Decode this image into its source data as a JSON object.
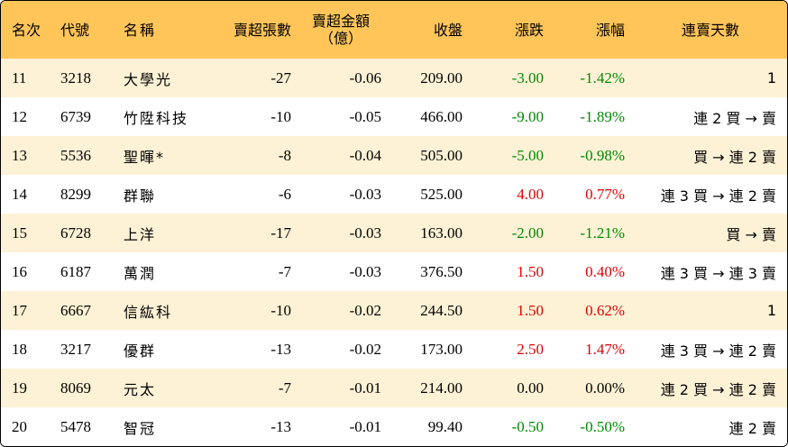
{
  "headers": {
    "rank": "名次",
    "code": "代號",
    "name": "名稱",
    "sell_lots": "賣超張數",
    "sell_amount_line1": "賣超金額",
    "sell_amount_line2": "（億）",
    "close": "收盤",
    "change": "漲跌",
    "pct": "漲幅",
    "streak": "連賣天數"
  },
  "colors": {
    "header_bg": "#ffc559",
    "odd_row_bg": "#fef2d6",
    "up": "#e00000",
    "down": "#008a00"
  },
  "rows": [
    {
      "rank": "11",
      "code": "3218",
      "name": "大學光",
      "lots": "-27",
      "amount": "-0.06",
      "close": "209.00",
      "change": "-3.00",
      "pct": "-1.42%",
      "dir": "down",
      "streak": "1"
    },
    {
      "rank": "12",
      "code": "6739",
      "name": "竹陞科技",
      "lots": "-10",
      "amount": "-0.05",
      "close": "466.00",
      "change": "-9.00",
      "pct": "-1.89%",
      "dir": "down",
      "streak": "連 2 買 → 賣"
    },
    {
      "rank": "13",
      "code": "5536",
      "name": "聖暉*",
      "lots": "-8",
      "amount": "-0.04",
      "close": "505.00",
      "change": "-5.00",
      "pct": "-0.98%",
      "dir": "down",
      "streak": "買 → 連 2 賣"
    },
    {
      "rank": "14",
      "code": "8299",
      "name": "群聯",
      "lots": "-6",
      "amount": "-0.03",
      "close": "525.00",
      "change": "4.00",
      "pct": "0.77%",
      "dir": "up",
      "streak": "連 3 買 → 連 2 賣"
    },
    {
      "rank": "15",
      "code": "6728",
      "name": "上洋",
      "lots": "-17",
      "amount": "-0.03",
      "close": "163.00",
      "change": "-2.00",
      "pct": "-1.21%",
      "dir": "down",
      "streak": "買 → 賣"
    },
    {
      "rank": "16",
      "code": "6187",
      "name": "萬潤",
      "lots": "-7",
      "amount": "-0.03",
      "close": "376.50",
      "change": "1.50",
      "pct": "0.40%",
      "dir": "up",
      "streak": "連 3 買 → 連 3 賣"
    },
    {
      "rank": "17",
      "code": "6667",
      "name": "信紘科",
      "lots": "-10",
      "amount": "-0.02",
      "close": "244.50",
      "change": "1.50",
      "pct": "0.62%",
      "dir": "up",
      "streak": "1"
    },
    {
      "rank": "18",
      "code": "3217",
      "name": "優群",
      "lots": "-13",
      "amount": "-0.02",
      "close": "173.00",
      "change": "2.50",
      "pct": "1.47%",
      "dir": "up",
      "streak": "連 3 買 → 連 2 賣"
    },
    {
      "rank": "19",
      "code": "8069",
      "name": "元太",
      "lots": "-7",
      "amount": "-0.01",
      "close": "214.00",
      "change": "0.00",
      "pct": "0.00%",
      "dir": "flat",
      "streak": "連 2 買 → 連 2 賣"
    },
    {
      "rank": "20",
      "code": "5478",
      "name": "智冠",
      "lots": "-13",
      "amount": "-0.01",
      "close": "99.40",
      "change": "-0.50",
      "pct": "-0.50%",
      "dir": "down",
      "streak": "連 2 賣"
    }
  ]
}
